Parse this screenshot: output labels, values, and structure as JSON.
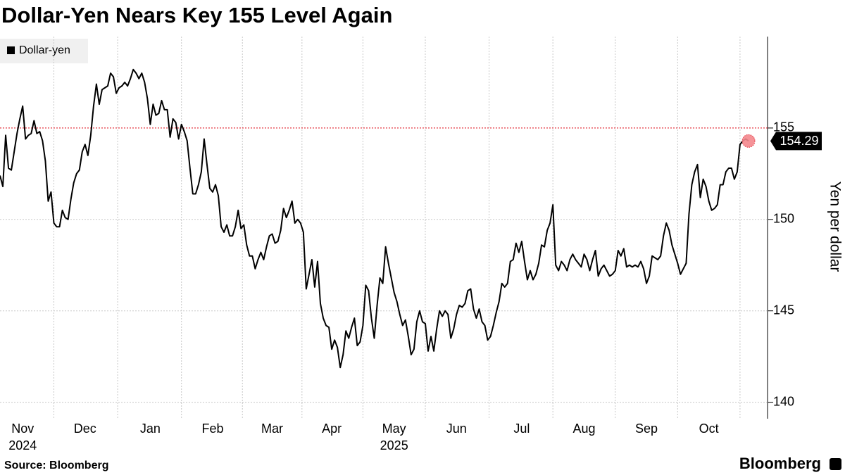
{
  "chart_data": {
    "type": "line",
    "title": "Dollar-Yen Nears Key 155 Level Again",
    "y_axis_label": "Yen per dollar",
    "source": "Source: Bloomberg",
    "brand": "Bloomberg",
    "legend_position": "top-left",
    "grid": true,
    "ylim": [
      139.1,
      160
    ],
    "yticks": [
      140,
      145,
      150,
      155
    ],
    "reference_line": {
      "value": 155,
      "color": "#e4343f"
    },
    "categories": [
      null,
      null,
      null,
      null,
      null,
      null,
      null,
      null,
      "Nov",
      null,
      null,
      null,
      null,
      null,
      null,
      null,
      null,
      null,
      null,
      null,
      null,
      null,
      null,
      null,
      null,
      null,
      null,
      null,
      null,
      null,
      "Dec",
      null,
      null,
      null,
      null,
      null,
      null,
      null,
      null,
      null,
      null,
      null,
      null,
      null,
      null,
      null,
      null,
      null,
      null,
      null,
      null,
      null,
      null,
      "Jan",
      null,
      null,
      null,
      null,
      null,
      null,
      null,
      null,
      null,
      null,
      null,
      null,
      null,
      null,
      null,
      null,
      null,
      null,
      null,
      null,
      null,
      "Feb",
      null,
      null,
      null,
      null,
      null,
      null,
      null,
      null,
      null,
      null,
      null,
      null,
      null,
      null,
      null,
      null,
      null,
      null,
      null,
      null,
      "Mar",
      null,
      null,
      null,
      null,
      null,
      null,
      null,
      null,
      null,
      null,
      null,
      null,
      null,
      null,
      null,
      null,
      null,
      null,
      null,
      null,
      "Apr",
      null,
      null,
      null,
      null,
      null,
      null,
      null,
      null,
      null,
      null,
      null,
      null,
      null,
      null,
      null,
      null,
      null,
      null,
      null,
      null,
      null,
      "May",
      null,
      null,
      null,
      null,
      null,
      null,
      null,
      null,
      null,
      null,
      null,
      null,
      null,
      null,
      null,
      null,
      null,
      null,
      null,
      null,
      null,
      "Jun",
      null,
      null,
      null,
      null,
      null,
      null,
      null,
      null,
      null,
      null,
      null,
      null,
      null,
      null,
      null,
      null,
      null,
      null,
      null,
      null,
      null,
      null,
      "Jul",
      null,
      null,
      null,
      null,
      null,
      null,
      null,
      null,
      null,
      null,
      null,
      null,
      null,
      null,
      null,
      null,
      null,
      null,
      null,
      null,
      null,
      "Aug",
      null,
      null,
      null,
      null,
      null,
      null,
      null,
      null,
      null,
      null,
      null,
      null,
      null,
      null,
      null,
      null,
      null,
      null,
      null,
      null,
      null,
      "Sep",
      null,
      null,
      null,
      null,
      null,
      null,
      null,
      null,
      null,
      null,
      null,
      null,
      null,
      null,
      null,
      null,
      null,
      null,
      null,
      null,
      null,
      "Oct",
      null,
      null,
      null,
      null,
      null,
      null,
      null,
      null,
      null,
      null,
      null,
      null,
      null,
      null
    ],
    "year_categories": [
      null,
      null,
      null,
      null,
      null,
      null,
      null,
      null,
      "2024",
      null,
      null,
      null,
      null,
      null,
      null,
      null,
      null,
      null,
      null,
      null,
      null,
      null,
      null,
      null,
      null,
      null,
      null,
      null,
      null,
      null,
      null,
      null,
      null,
      null,
      null,
      null,
      null,
      null,
      null,
      null,
      null,
      null,
      null,
      null,
      null,
      null,
      null,
      null,
      null,
      null,
      null,
      null,
      null,
      null,
      null,
      null,
      null,
      null,
      null,
      null,
      null,
      null,
      null,
      null,
      null,
      null,
      null,
      null,
      null,
      null,
      null,
      null,
      null,
      null,
      null,
      null,
      null,
      null,
      null,
      null,
      null,
      null,
      null,
      null,
      null,
      null,
      null,
      null,
      null,
      null,
      null,
      null,
      null,
      null,
      null,
      null,
      null,
      null,
      null,
      null,
      null,
      null,
      null,
      null,
      null,
      null,
      null,
      null,
      null,
      null,
      null,
      null,
      null,
      null,
      null,
      null,
      null,
      null,
      null,
      null,
      null,
      null,
      null,
      null,
      null,
      null,
      null,
      null,
      null,
      null,
      null,
      null,
      null,
      null,
      null,
      null,
      null,
      null,
      null,
      "2025",
      null,
      null,
      null,
      null,
      null,
      null,
      null,
      null,
      null,
      null,
      null,
      null,
      null,
      null,
      null,
      null,
      null,
      null,
      null,
      null,
      null,
      null,
      null,
      null,
      null,
      null,
      null,
      null,
      null,
      null,
      null,
      null,
      null,
      null,
      null,
      null,
      null,
      null,
      null,
      null,
      null,
      null,
      null,
      null,
      null,
      null,
      null,
      null,
      null,
      null,
      null,
      null,
      null,
      null,
      null,
      null,
      null,
      null,
      null,
      null,
      null,
      null,
      null,
      null,
      null,
      null,
      null,
      null,
      null,
      null,
      null,
      null,
      null,
      null,
      null,
      null,
      null,
      null,
      null,
      null,
      null,
      null,
      null,
      null,
      null,
      null,
      null,
      null,
      null,
      null,
      null,
      null,
      null,
      null,
      null,
      null,
      null,
      null,
      null,
      null,
      null,
      null,
      null,
      null,
      null,
      null,
      null,
      null,
      null,
      null,
      null,
      null,
      null,
      null,
      null,
      null,
      null,
      null,
      null,
      null,
      null,
      null,
      null,
      null,
      null
    ],
    "series": [
      {
        "name": "Dollar-yen",
        "color": "#000000",
        "values": [
          152.4,
          151.8,
          154.6,
          152.8,
          152.7,
          153.7,
          154.7,
          155.5,
          156.2,
          154.4,
          154.6,
          154.7,
          155.4,
          154.7,
          154.8,
          154.3,
          153.2,
          151.0,
          151.5,
          149.8,
          149.6,
          149.6,
          150.5,
          150.1,
          150.0,
          151.1,
          152.0,
          152.5,
          152.7,
          153.7,
          154.1,
          153.5,
          154.6,
          156.2,
          157.4,
          156.3,
          157.1,
          157.2,
          157.3,
          158.0,
          157.8,
          156.9,
          157.2,
          157.3,
          157.5,
          157.3,
          157.7,
          158.2,
          158.0,
          157.7,
          158.0,
          157.5,
          156.6,
          155.2,
          156.3,
          155.7,
          155.8,
          156.5,
          156.0,
          156.0,
          154.5,
          155.5,
          155.3,
          154.4,
          155.2,
          154.8,
          154.3,
          152.8,
          151.4,
          151.4,
          151.9,
          152.6,
          154.4,
          153.0,
          151.7,
          151.5,
          151.9,
          151.3,
          149.6,
          149.3,
          149.7,
          149.1,
          149.1,
          149.6,
          150.5,
          149.5,
          149.7,
          148.6,
          148.0,
          148.0,
          147.3,
          147.8,
          148.2,
          147.8,
          148.5,
          149.1,
          149.2,
          148.7,
          148.8,
          149.4,
          150.6,
          150.1,
          150.5,
          151.0,
          149.8,
          150.0,
          149.8,
          149.3,
          146.2,
          147.0,
          147.8,
          146.3,
          147.7,
          145.4,
          144.6,
          144.2,
          144.1,
          142.9,
          143.4,
          143.0,
          141.9,
          142.6,
          143.9,
          143.5,
          144.1,
          144.6,
          143.1,
          143.3,
          144.2,
          146.4,
          146.1,
          144.6,
          143.5,
          145.3,
          146.8,
          146.5,
          148.5,
          147.6,
          146.8,
          146.0,
          145.5,
          144.8,
          144.2,
          144.5,
          143.6,
          142.6,
          142.9,
          144.4,
          145.0,
          144.4,
          144.3,
          142.8,
          143.6,
          142.8,
          144.0,
          145.0,
          144.7,
          145.0,
          144.8,
          143.5,
          144.0,
          144.8,
          145.3,
          145.2,
          145.4,
          146.1,
          146.2,
          145.1,
          144.6,
          145.1,
          144.4,
          144.2,
          143.4,
          143.6,
          144.2,
          144.9,
          145.5,
          146.5,
          146.3,
          146.5,
          147.7,
          147.8,
          148.7,
          148.2,
          148.8,
          147.7,
          146.7,
          147.2,
          146.7,
          147.0,
          147.6,
          148.6,
          148.5,
          149.4,
          149.8,
          150.8,
          147.5,
          147.2,
          147.7,
          147.5,
          147.2,
          147.8,
          148.1,
          147.8,
          147.6,
          147.4,
          148.1,
          147.8,
          147.2,
          147.8,
          148.3,
          146.9,
          147.3,
          147.5,
          147.2,
          146.9,
          147.0,
          147.2,
          148.3,
          148.0,
          148.4,
          147.4,
          147.5,
          147.4,
          147.5,
          147.4,
          147.7,
          147.3,
          146.5,
          146.9,
          148.0,
          147.9,
          147.8,
          148.0,
          149.1,
          149.8,
          149.4,
          148.6,
          148.1,
          147.6,
          147.0,
          147.3,
          147.6,
          150.3,
          151.9,
          152.6,
          153.0,
          151.2,
          152.2,
          151.8,
          151.0,
          150.5,
          150.6,
          150.8,
          151.9,
          151.9,
          152.6,
          152.8,
          152.8,
          152.2,
          152.6,
          154.1,
          154.3,
          154.4,
          154.29
        ]
      }
    ],
    "last_marker_color": "#f4878d"
  }
}
